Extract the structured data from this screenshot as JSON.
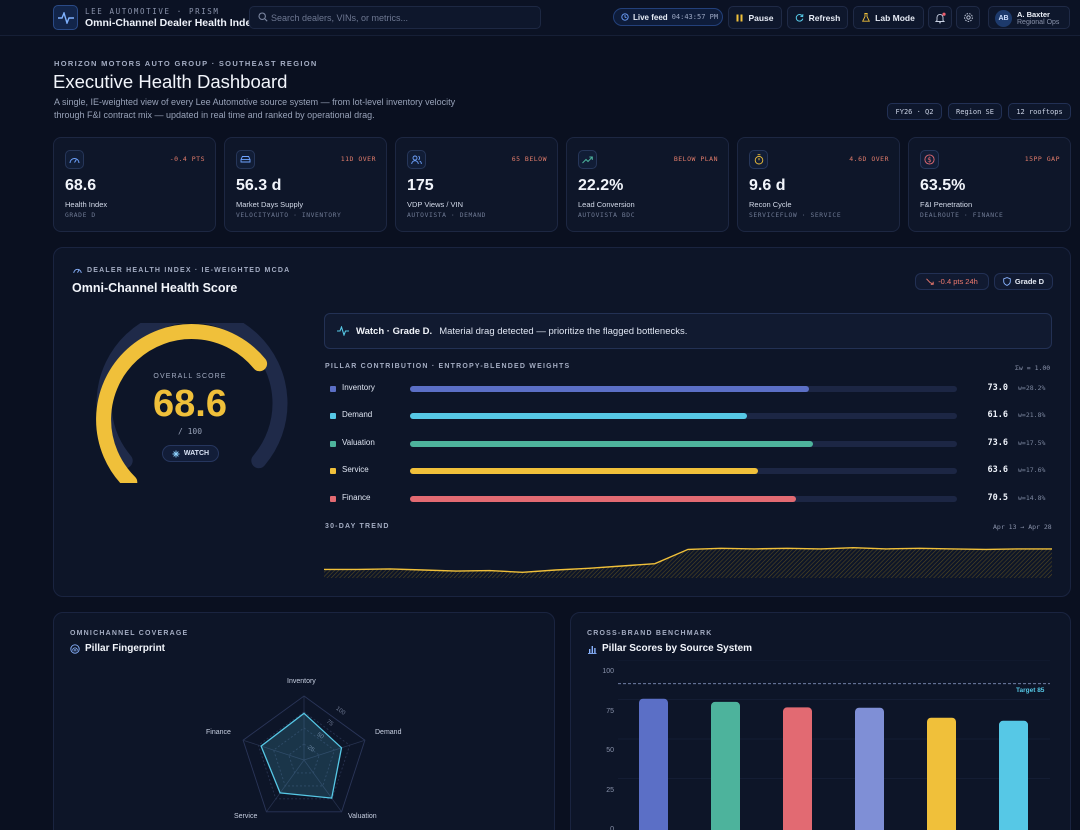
{
  "app": {
    "brand_sub": "LEE AUTOMOTIVE · PRISM",
    "brand_title": "Omni-Channel Dealer Health Index"
  },
  "search": {
    "placeholder": "Search dealers, VINs, or metrics..."
  },
  "topbar": {
    "live_label": "Live feed",
    "live_time": "04:43:57 PM",
    "pause": "Pause",
    "refresh": "Refresh",
    "lab_mode": "Lab Mode"
  },
  "user": {
    "initials": "AB",
    "name": "A. Baxter",
    "role": "Regional Ops"
  },
  "header": {
    "eyebrow": "HORIZON MOTORS AUTO GROUP · SOUTHEAST REGION",
    "title": "Executive Health Dashboard",
    "description": "A single, IE-weighted view of every Lee Automotive source system — from lot-level inventory velocity through F&I contract mix — updated in real time and ranked by operational drag.",
    "chips": [
      "FY26 · Q2",
      "Region SE",
      "12 rooftops"
    ]
  },
  "kpis": [
    {
      "icon": "gauge-icon",
      "flag": "-0.4 PTS",
      "value": "68.6",
      "label": "Health Index",
      "source": "GRADE D"
    },
    {
      "icon": "car-icon",
      "flag": "11D OVER",
      "value": "56.3 d",
      "label": "Market Days Supply",
      "source": "VELOCITYAUTO · INVENTORY"
    },
    {
      "icon": "users-icon",
      "flag": "65 BELOW",
      "value": "175",
      "label": "VDP Views / VIN",
      "source": "AUTOVISTA · DEMAND"
    },
    {
      "icon": "trend-up-icon",
      "flag": "BELOW PLAN",
      "value": "22.2%",
      "label": "Lead Conversion",
      "source": "AUTOVISTA BDC"
    },
    {
      "icon": "timer-icon",
      "flag": "4.6D OVER",
      "value": "9.6 d",
      "label": "Recon Cycle",
      "source": "SERVICEFLOW · SERVICE"
    },
    {
      "icon": "dollar-icon",
      "flag": "15PP GAP",
      "value": "63.5%",
      "label": "F&I Penetration",
      "source": "DEALROUTE · FINANCE"
    }
  ],
  "health": {
    "eyebrow": "DEALER HEALTH INDEX · IE-WEIGHTED MCDA",
    "title": "Omni-Channel Health Score",
    "delta_pill": "-0.4 pts 24h",
    "grade_pill": "Grade D",
    "score_label": "OVERALL SCORE",
    "score": "68.6",
    "score_value": 68.6,
    "score_of": "/ 100",
    "status": "WATCH",
    "alert_strong": "Watch · Grade D.",
    "alert_text": "Material drag detected — prioritize the flagged bottlenecks.",
    "pillar_section": "PILLAR CONTRIBUTION · ENTROPY-BLENDED WEIGHTS",
    "pillar_sum": "Σw = 1.00",
    "pillars": [
      {
        "name": "Inventory",
        "score": "73.0",
        "value": 73.0,
        "weight": "w=28.2%",
        "color": "#5b6fc6"
      },
      {
        "name": "Demand",
        "score": "61.6",
        "value": 61.6,
        "weight": "w=21.8%",
        "color": "#56c8e6"
      },
      {
        "name": "Valuation",
        "score": "73.6",
        "value": 73.6,
        "weight": "w=17.5%",
        "color": "#4db39c"
      },
      {
        "name": "Service",
        "score": "63.6",
        "value": 63.6,
        "weight": "w=17.6%",
        "color": "#f0c03a"
      },
      {
        "name": "Finance",
        "score": "70.5",
        "value": 70.5,
        "weight": "w=14.8%",
        "color": "#e26a72"
      }
    ],
    "trend_label": "30-DAY TREND",
    "trend_range": "Apr 13 → Apr 28"
  },
  "fingerprint": {
    "eyebrow": "OMNICHANNEL COVERAGE",
    "title": "Pillar Fingerprint",
    "axes": [
      "Inventory",
      "Demand",
      "Valuation",
      "Service",
      "Finance"
    ],
    "ring_labels": [
      "100",
      "75",
      "50",
      "25"
    ]
  },
  "benchmark": {
    "eyebrow": "CROSS-BRAND BENCHMARK",
    "title": "Pillar Scores by Source System",
    "target_label": "Target 85"
  },
  "chart_data": [
    {
      "type": "line",
      "title": "30-DAY TREND",
      "x_range": [
        "Apr 13",
        "Apr 28"
      ],
      "series": [
        {
          "values": [
            65.0,
            65.0,
            65.1,
            64.9,
            64.7,
            64.8,
            64.5,
            64.9,
            65.2,
            65.6,
            66.0,
            68.5,
            68.7,
            68.6,
            68.7,
            68.6,
            68.8,
            68.6,
            68.7,
            68.6,
            68.5,
            68.6,
            68.6
          ]
        }
      ]
    },
    {
      "type": "radar",
      "title": "Pillar Fingerprint",
      "categories": [
        "Inventory",
        "Demand",
        "Valuation",
        "Service",
        "Finance"
      ],
      "values": [
        73.0,
        61.6,
        73.6,
        63.6,
        70.5
      ],
      "rlim": [
        0,
        100
      ]
    },
    {
      "type": "bar",
      "title": "Pillar Scores by Source System",
      "ylim": [
        0,
        100
      ],
      "yticks": [
        100,
        75,
        50,
        25,
        0
      ],
      "target": 85,
      "values": [
        75.5,
        73.5,
        70.0,
        69.8,
        63.5,
        61.5
      ],
      "colors": [
        "#5b6fc6",
        "#4db39c",
        "#e26a72",
        "#7f8fd6",
        "#f0c03a",
        "#56c8e6"
      ]
    }
  ]
}
